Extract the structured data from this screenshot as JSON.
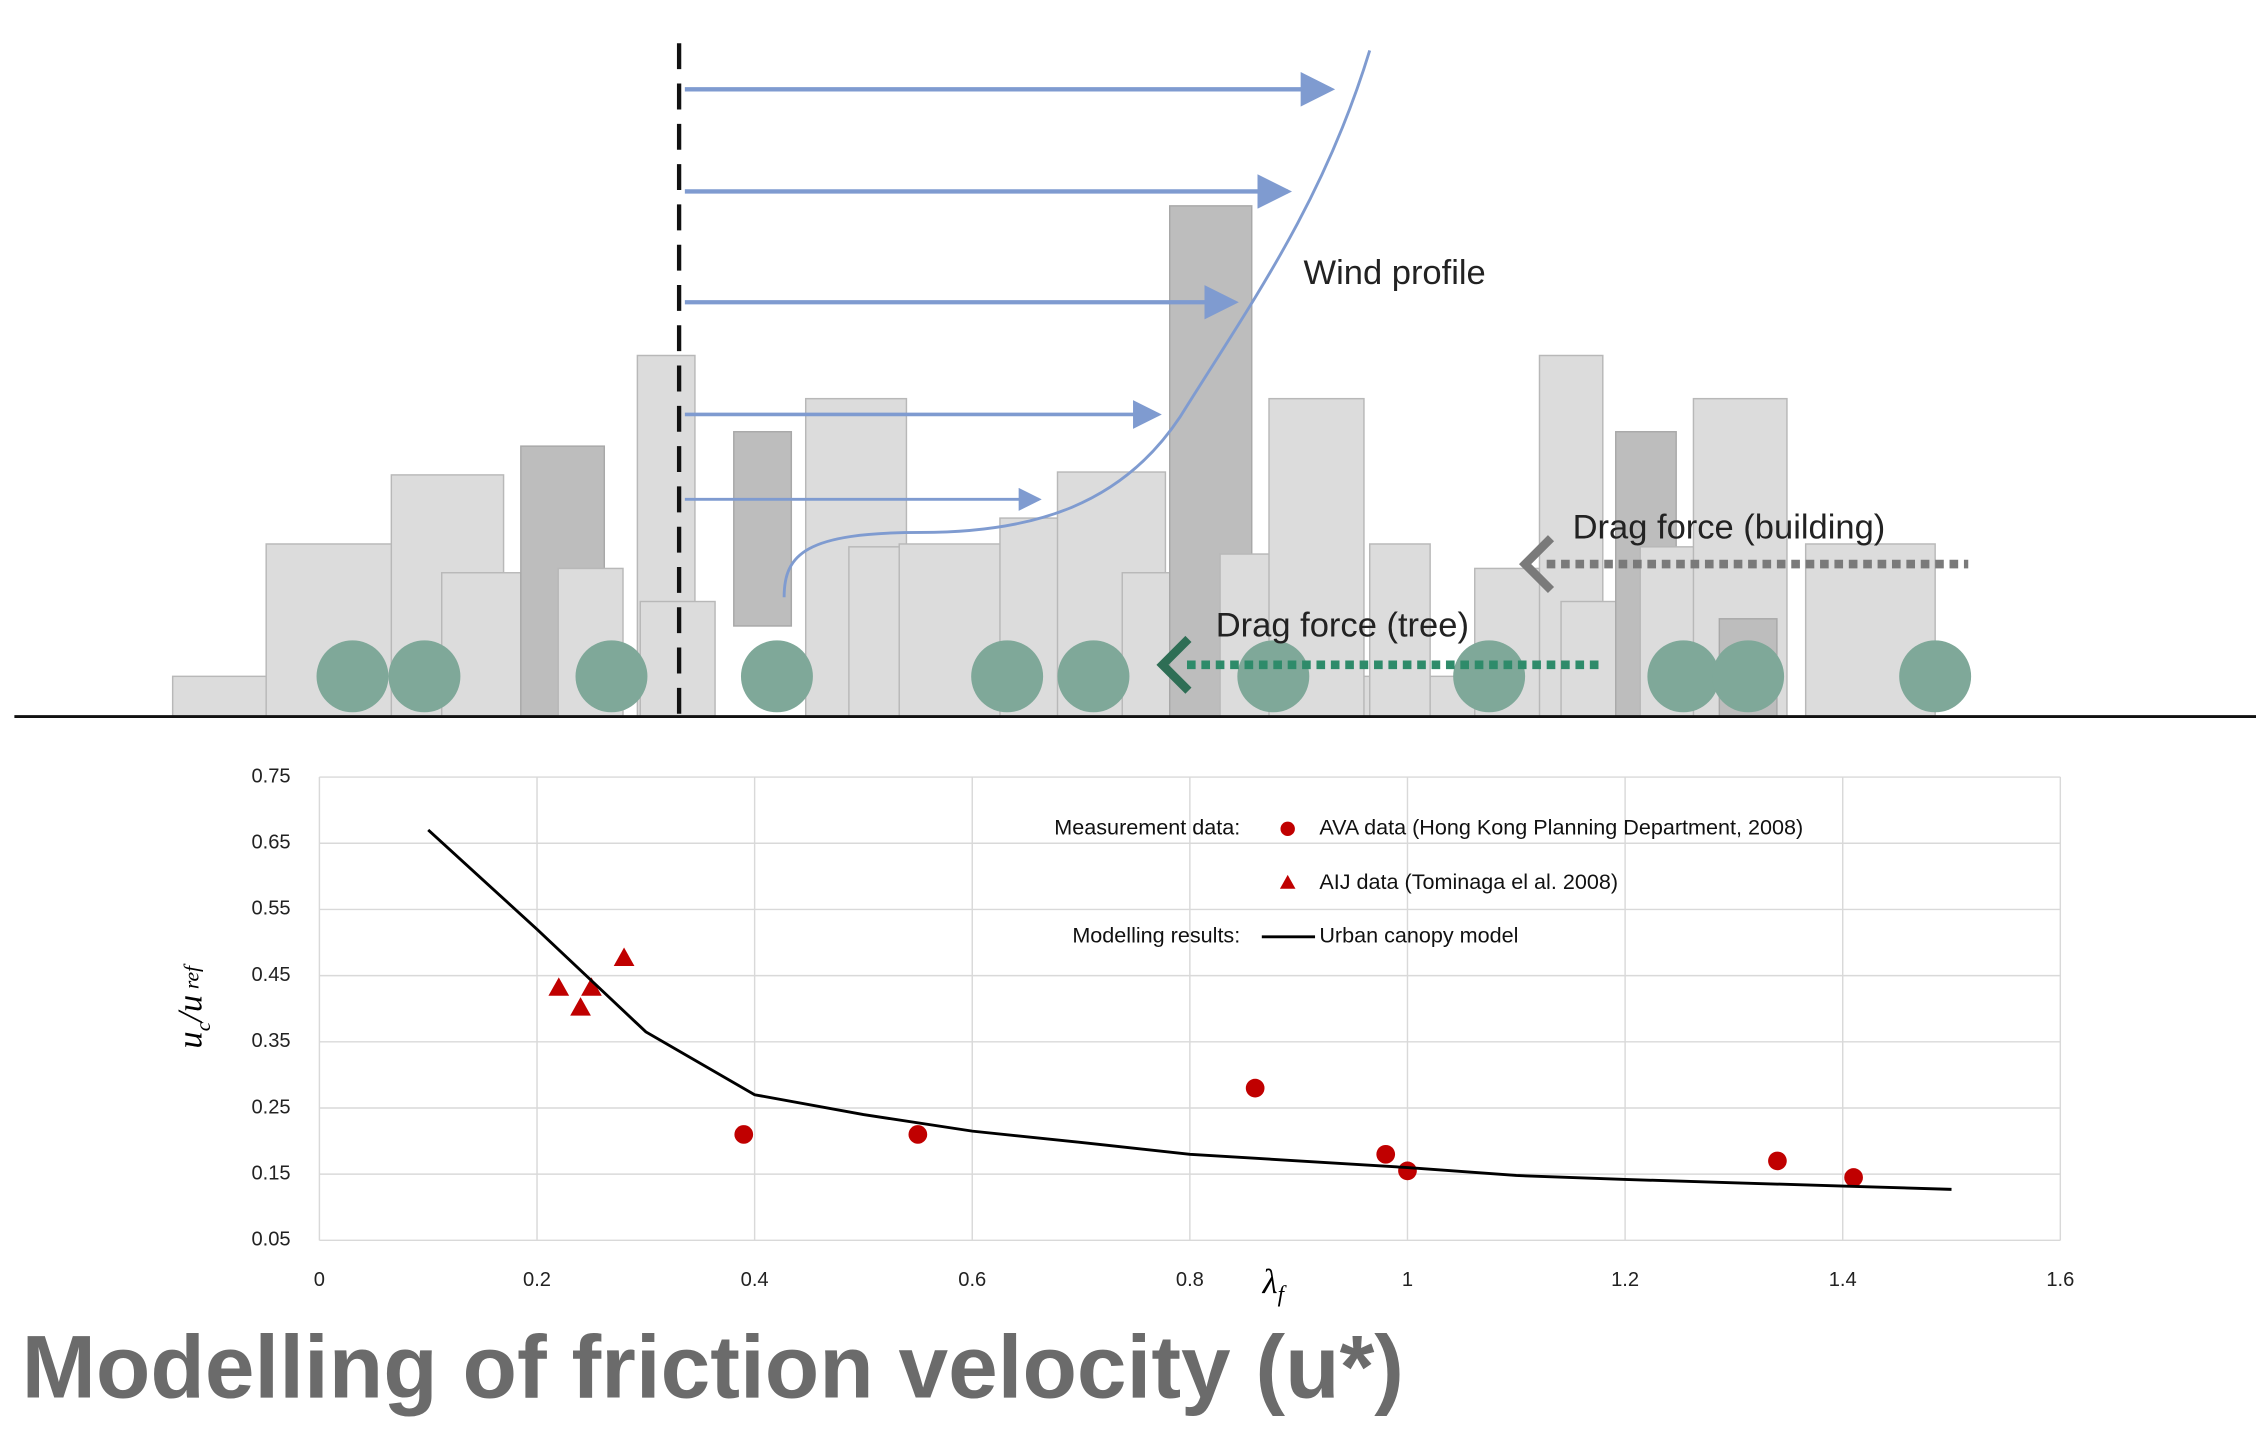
{
  "heading": "Modelling of friction velocity (u*)",
  "illustration": {
    "wind_label": "Wind profile",
    "drag_building": "Drag force (building)",
    "drag_tree": "Drag force (tree)"
  },
  "chart_data": {
    "type": "scatter",
    "xlabel": {
      "main": "λ",
      "sub": "f"
    },
    "ylabel": {
      "main1": "u",
      "sub1": "c",
      "main2": "/u",
      "sub2": "ref"
    },
    "xlim": [
      0,
      1.6
    ],
    "ylim": [
      0.05,
      0.75
    ],
    "xticks": [
      0,
      0.2,
      0.4,
      0.6,
      0.8,
      1,
      1.2,
      1.4,
      1.6
    ],
    "yticks": [
      0.05,
      0.15,
      0.25,
      0.35,
      0.45,
      0.55,
      0.65,
      0.75
    ],
    "grid": true,
    "legend_groups": [
      "Measurement data:",
      "Modelling results:"
    ],
    "series": [
      {
        "name": "AVA data (Hong Kong Planning Department, 2008)",
        "marker": "circle",
        "color": "#c00000",
        "x": [
          0.39,
          0.55,
          0.86,
          0.98,
          1.0,
          1.34,
          1.41
        ],
        "values": [
          0.21,
          0.21,
          0.28,
          0.18,
          0.155,
          0.17,
          0.145
        ]
      },
      {
        "name": "AIJ data (Tominaga el al. 2008)",
        "marker": "triangle",
        "color": "#c00000",
        "x": [
          0.22,
          0.24,
          0.25,
          0.28
        ],
        "values": [
          0.43,
          0.4,
          0.43,
          0.475
        ]
      },
      {
        "name": "Urban canopy model",
        "marker": "line",
        "color": "#000000",
        "x": [
          0.1,
          0.2,
          0.3,
          0.4,
          0.5,
          0.6,
          0.7,
          0.8,
          0.9,
          1.0,
          1.1,
          1.2,
          1.3,
          1.4,
          1.5
        ],
        "values": [
          0.67,
          0.52,
          0.365,
          0.27,
          0.24,
          0.215,
          0.198,
          0.18,
          0.17,
          0.16,
          0.148,
          0.142,
          0.137,
          0.132,
          0.127
        ]
      }
    ]
  }
}
